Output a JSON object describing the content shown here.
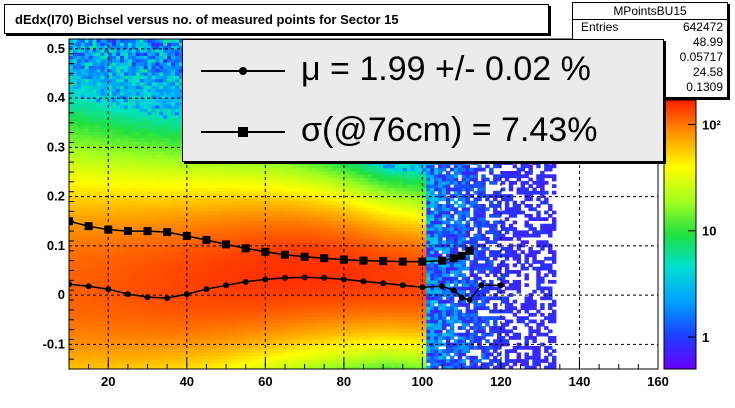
{
  "title": "dEdx(I70) Bichsel versus no. of measured points for Sector 15",
  "stats": {
    "name": "MPointsBU15",
    "rows": [
      {
        "label": "Entries",
        "value": "642472"
      },
      {
        "label": "",
        "value": "48.99"
      },
      {
        "label": "",
        "value": "0.05717"
      },
      {
        "label": "",
        "value": "24.58"
      },
      {
        "label": "",
        "value": "0.1309"
      }
    ]
  },
  "legend": {
    "mu_text": "μ  =  1.99 +/-  0.02 %",
    "sigma_text": "σ(@76cm) =  7.43%"
  },
  "chart_data": {
    "type": "heatmap",
    "xlim": [
      10,
      160
    ],
    "ylim": [
      -0.15,
      0.52
    ],
    "xticks": [
      20,
      40,
      60,
      80,
      100,
      120,
      140,
      160
    ],
    "yticks": [
      -0.1,
      0,
      0.1,
      0.2,
      0.3,
      0.4,
      0.5
    ],
    "ytick_labels": [
      "-0.1",
      "0",
      "0.1",
      "0.2",
      "0.3",
      "0.4",
      "0.5"
    ],
    "grid": true,
    "colorbar": {
      "scale": "log",
      "ticks": [
        "1",
        "10",
        "10²"
      ]
    },
    "series": [
      {
        "marker": "circle",
        "x": [
          10,
          15,
          20,
          25,
          30,
          35,
          40,
          45,
          50,
          55,
          60,
          65,
          70,
          75,
          80,
          85,
          90,
          95,
          100,
          105,
          108,
          110,
          112,
          115,
          120
        ],
        "y": [
          0.022,
          0.018,
          0.012,
          0.002,
          -0.004,
          -0.006,
          0.002,
          0.012,
          0.02,
          0.027,
          0.032,
          0.035,
          0.036,
          0.035,
          0.032,
          0.028,
          0.024,
          0.02,
          0.016,
          0.018,
          0.01,
          -0.005,
          -0.01,
          0.02,
          0.02
        ]
      },
      {
        "marker": "square",
        "x": [
          10,
          15,
          20,
          25,
          30,
          35,
          40,
          45,
          50,
          55,
          60,
          65,
          70,
          75,
          80,
          85,
          90,
          95,
          100,
          105,
          108,
          110,
          112
        ],
        "y": [
          0.15,
          0.14,
          0.133,
          0.13,
          0.13,
          0.128,
          0.12,
          0.112,
          0.103,
          0.095,
          0.088,
          0.082,
          0.078,
          0.075,
          0.072,
          0.07,
          0.069,
          0.068,
          0.068,
          0.07,
          0.075,
          0.08,
          0.09
        ]
      }
    ]
  }
}
